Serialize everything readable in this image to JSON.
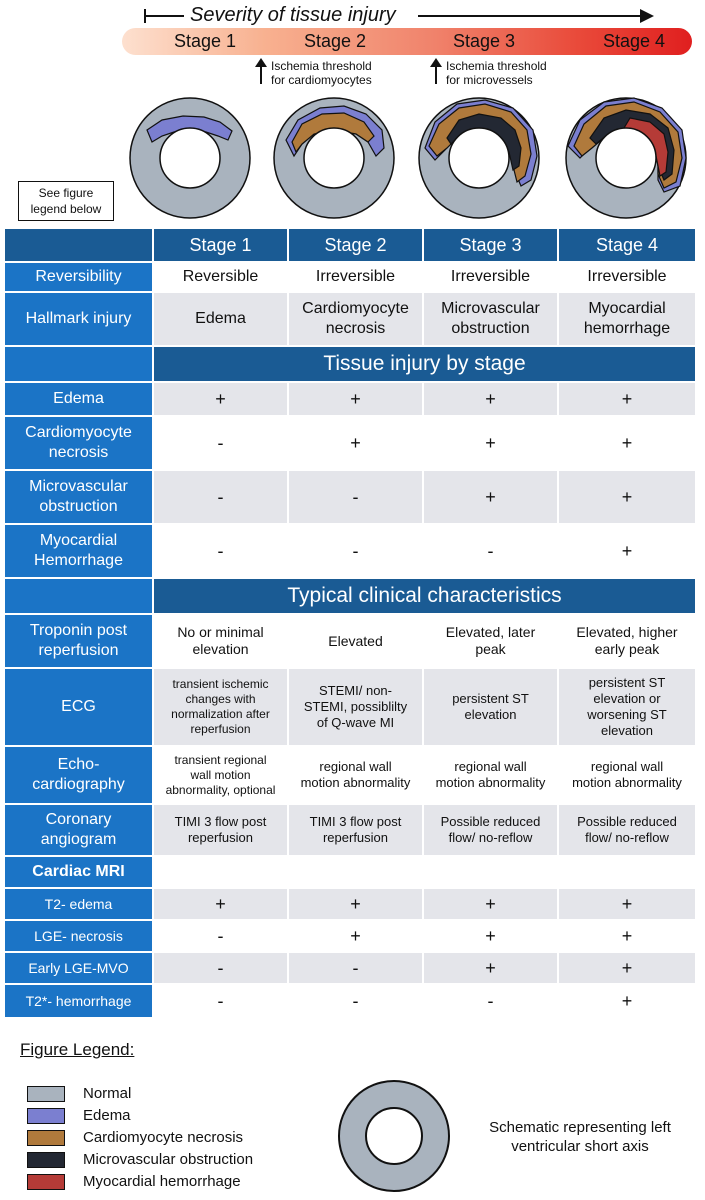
{
  "header": {
    "severity_label": "Severity of tissue injury",
    "stages": [
      "Stage 1",
      "Stage 2",
      "Stage 3",
      "Stage 4"
    ],
    "threshold_cardiomyocytes": [
      "Ischemia threshold",
      "for cardiomyocytes"
    ],
    "threshold_microvessels": [
      "Ischemia threshold",
      "for microvessels"
    ],
    "see_legend": [
      "See figure",
      "legend below"
    ]
  },
  "colors": {
    "normal": "#a9b3be",
    "edema": "#7b7fd0",
    "necrosis": "#b07a3c",
    "mvo": "#232833",
    "hemorrhage": "#b53b37",
    "table_header": "#1a5b94",
    "table_label": "#1b74c6",
    "row_grey": "#e4e5ea"
  },
  "table": {
    "stage_headers": [
      "Stage 1",
      "Stage 2",
      "Stage 3",
      "Stage 4"
    ],
    "reversibility": {
      "label": "Reversibility",
      "values": [
        "Reversible",
        "Irreversible",
        "Irreversible",
        "Irreversible"
      ]
    },
    "hallmark": {
      "label": "Hallmark injury",
      "values": [
        [
          "Edema"
        ],
        [
          "Cardiomyocyte",
          "necrosis"
        ],
        [
          "Microvascular",
          "obstruction"
        ],
        [
          "Myocardial",
          "hemorrhage"
        ]
      ]
    },
    "tissue_band": "Tissue injury by stage",
    "tissue_rows": [
      {
        "label": [
          "Edema"
        ],
        "values": [
          "+",
          "+",
          "+",
          "+"
        ]
      },
      {
        "label": [
          "Cardiomyocyte",
          "necrosis"
        ],
        "values": [
          "-",
          "+",
          "+",
          "+"
        ]
      },
      {
        "label": [
          "Microvascular",
          "obstruction"
        ],
        "values": [
          "-",
          "-",
          "+",
          "+"
        ]
      },
      {
        "label": [
          "Myocardial",
          "Hemorrhage"
        ],
        "values": [
          "-",
          "-",
          "-",
          "+"
        ]
      }
    ],
    "clinical_band": "Typical clinical characteristics",
    "troponin": {
      "label": [
        "Troponin post",
        "reperfusion"
      ],
      "values": [
        [
          "No or minimal",
          "elevation"
        ],
        [
          "Elevated"
        ],
        [
          "Elevated, later",
          "peak"
        ],
        [
          "Elevated, higher",
          "early peak"
        ]
      ]
    },
    "ecg": {
      "label": [
        "ECG"
      ],
      "values": [
        [
          "transient ischemic",
          "changes with",
          "normalization after",
          "reperfusion"
        ],
        [
          "STEMI/ non-",
          "STEMI, possiblilty",
          "of Q-wave MI"
        ],
        [
          "persistent ST",
          "elevation"
        ],
        [
          "persistent ST",
          "elevation or",
          "worsening ST",
          "elevation"
        ]
      ]
    },
    "echo": {
      "label": [
        "Echo-",
        "cardiography"
      ],
      "values": [
        [
          "transient regional",
          "wall motion",
          "abnormality, optional"
        ],
        [
          "regional wall",
          "motion abnormality"
        ],
        [
          "regional wall",
          "motion abnormality"
        ],
        [
          "regional wall",
          "motion abnormality"
        ]
      ]
    },
    "angiogram": {
      "label": [
        "Coronary",
        "angiogram"
      ],
      "values": [
        [
          "TIMI 3 flow post",
          "reperfusion"
        ],
        [
          "TIMI 3 flow post",
          "reperfusion"
        ],
        [
          "Possible reduced",
          "flow/ no-reflow"
        ],
        [
          "Possible reduced",
          "flow/ no-reflow"
        ]
      ]
    },
    "mri_label": "Cardiac MRI",
    "mri_rows": [
      {
        "label": "T2- edema",
        "values": [
          "+",
          "+",
          "+",
          "+"
        ]
      },
      {
        "label": "LGE- necrosis",
        "values": [
          "-",
          "+",
          "+",
          "+"
        ]
      },
      {
        "label": "Early LGE-MVO",
        "values": [
          "-",
          "-",
          "+",
          "+"
        ]
      },
      {
        "label": "T2*- hemorrhage",
        "values": [
          "-",
          "-",
          "-",
          "+"
        ]
      }
    ]
  },
  "legend": {
    "title": "Figure Legend:",
    "items": [
      "Normal",
      "Edema",
      "Cardiomyocyte necrosis",
      "Microvascular obstruction",
      "Myocardial hemorrhage"
    ],
    "schematic_text": [
      "Schematic representing left",
      "ventricular short axis"
    ]
  }
}
